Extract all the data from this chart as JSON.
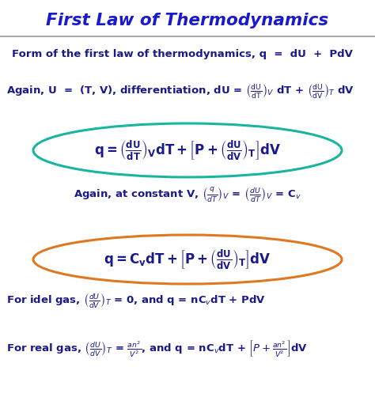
{
  "title": "First Law of Thermodynamics",
  "title_color": "#1a1acc",
  "bg_color": "#ffffff",
  "text_color": "#1a1a8c",
  "box1_color": "#1ab5a0",
  "box2_color": "#e07820",
  "figsize": [
    4.74,
    5.07
  ],
  "dpi": 100
}
